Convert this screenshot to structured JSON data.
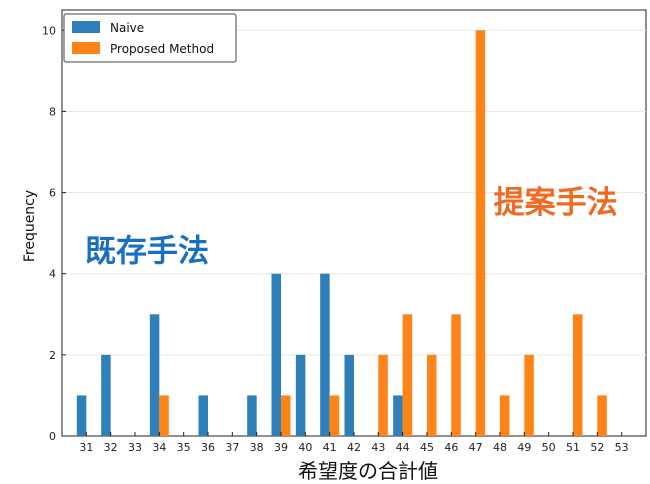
{
  "chart_data": {
    "type": "bar",
    "xlabel": "希望度の合計値",
    "ylabel": "Frequency",
    "categories": [
      "31",
      "32",
      "33",
      "34",
      "35",
      "36",
      "37",
      "38",
      "39",
      "40",
      "41",
      "42",
      "43",
      "44",
      "45",
      "46",
      "47",
      "48",
      "49",
      "50",
      "51",
      "52",
      "53"
    ],
    "ylim": [
      0,
      10.5
    ],
    "yticks": [
      0,
      2,
      4,
      6,
      8,
      10
    ],
    "series": [
      {
        "name": "Naive",
        "color": "#2f7fb8",
        "values": [
          1,
          2,
          0,
          3,
          0,
          1,
          0,
          1,
          4,
          2,
          4,
          2,
          0,
          1,
          0,
          0,
          0,
          0,
          0,
          0,
          0,
          0,
          0
        ]
      },
      {
        "name": "Proposed Method",
        "color": "#ff8418",
        "values": [
          0,
          0,
          0,
          1,
          0,
          0,
          0,
          0,
          1,
          0,
          1,
          0,
          2,
          3,
          2,
          3,
          10,
          1,
          2,
          0,
          3,
          1,
          0
        ]
      }
    ],
    "legend_position": "top-left",
    "grid": "horizontal",
    "annotations": [
      {
        "text": "既存手法",
        "color": "#1a6fc0",
        "x_category": "33",
        "y_value": 4.3
      },
      {
        "text": "提案手法",
        "color": "#ef6a22",
        "x_category": "50",
        "y_value": 5.5
      }
    ]
  }
}
